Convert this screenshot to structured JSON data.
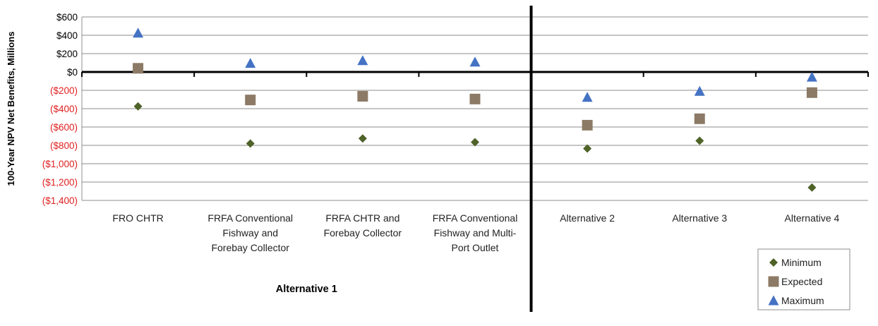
{
  "chart_data": {
    "type": "scatter",
    "ylabel": "100-Year NPV Net Benefits, Millions",
    "ylim": [
      -1400,
      600
    ],
    "ytick_step": 200,
    "ytick_labels": [
      "$600",
      "$400",
      "$200",
      "$0",
      "($200)",
      "($400)",
      "($600)",
      "($800)",
      "($1,000)",
      "($1,200)",
      "($1,400)"
    ],
    "negative_tick_color": "#e02020",
    "grid": true,
    "categories": [
      [
        "FRO CHTR"
      ],
      [
        "FRFA Conventional",
        "Fishway and",
        "Forebay Collector"
      ],
      [
        "FRFA CHTR and",
        "Forebay Collector"
      ],
      [
        "FRFA Conventional",
        "Fishway and Multi-",
        "Port Outlet"
      ],
      [
        "Alternative 2"
      ],
      [
        "Alternative 3"
      ],
      [
        "Alternative 4"
      ]
    ],
    "group_label": "Alternative 1",
    "group_span": [
      0,
      3
    ],
    "series": [
      {
        "name": "Minimum",
        "marker": "diamond",
        "color": "#4f6228",
        "values": [
          -375,
          -780,
          -725,
          -765,
          -835,
          -750,
          -1260
        ]
      },
      {
        "name": "Expected",
        "marker": "square",
        "color": "#8c7a66",
        "values": [
          40,
          -305,
          -265,
          -295,
          -580,
          -510,
          -225
        ]
      },
      {
        "name": "Maximum",
        "marker": "triangle",
        "color": "#4472c4",
        "values": [
          425,
          95,
          125,
          110,
          -275,
          -210,
          -55
        ]
      }
    ],
    "legend_position": "bottom-right"
  }
}
